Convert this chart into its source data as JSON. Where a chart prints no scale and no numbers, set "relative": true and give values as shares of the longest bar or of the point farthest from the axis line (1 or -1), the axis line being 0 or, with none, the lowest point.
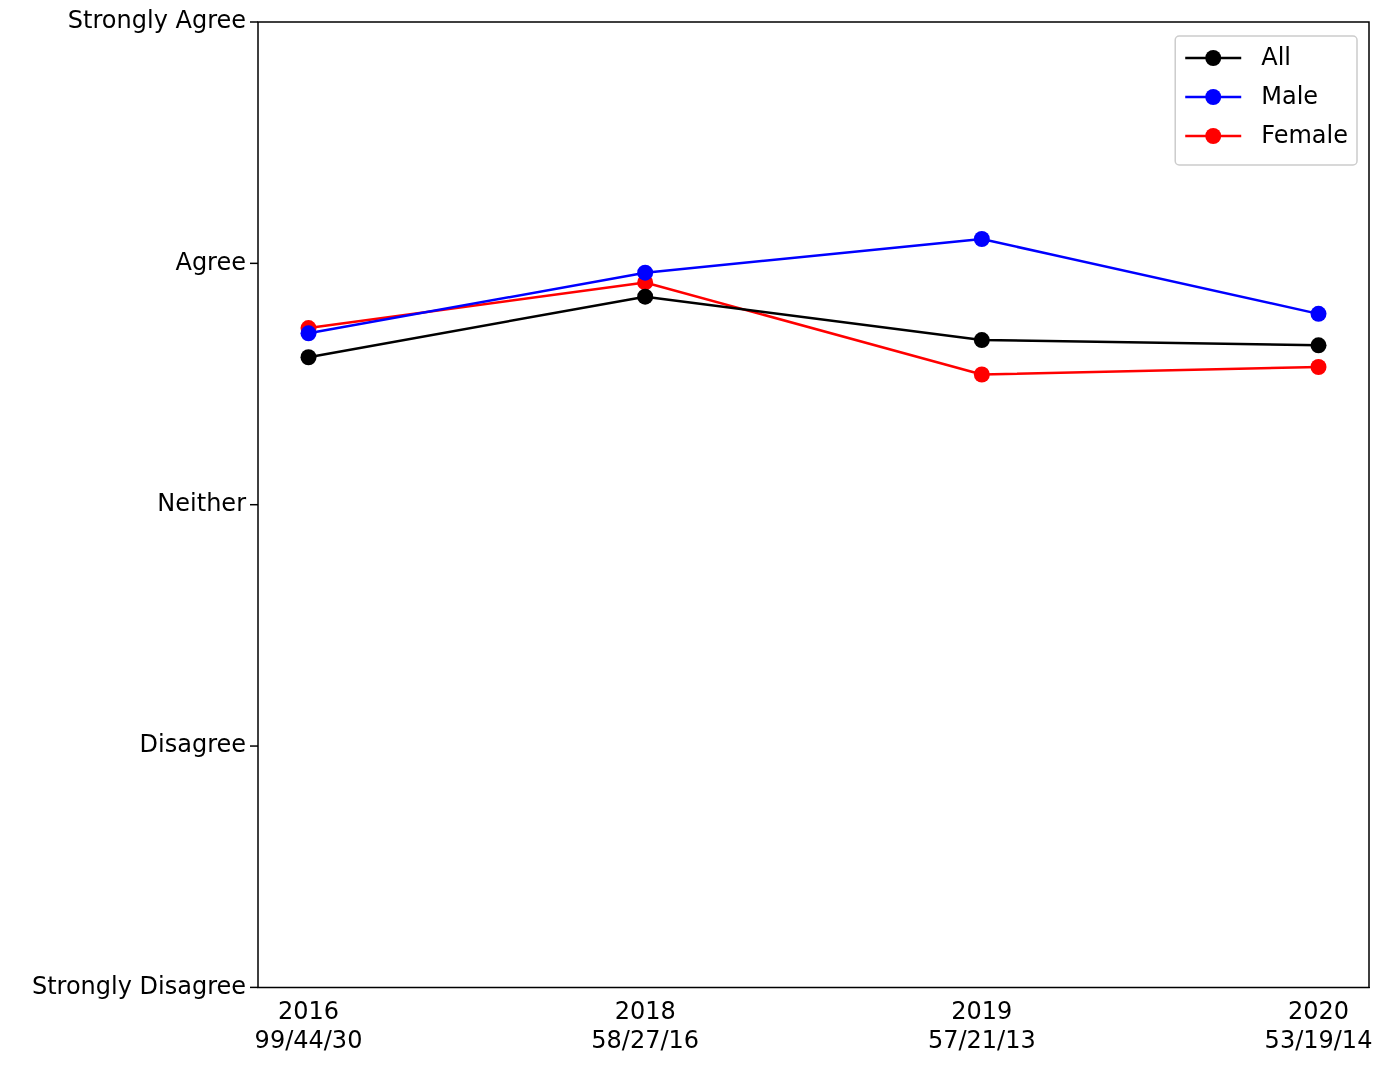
{
  "chart_data": {
    "type": "line",
    "relative": true,
    "categories": [
      "2016\n99/44/30",
      "2018\n58/27/16",
      "2019\n57/21/13",
      "2020\n53/19/14"
    ],
    "series": [
      {
        "name": "All",
        "color": "#000000",
        "values": [
          0.842,
          0.923,
          0.865,
          0.858
        ]
      },
      {
        "name": "Male",
        "color": "#0000ff",
        "values": [
          0.874,
          0.955,
          1,
          0.9
        ]
      },
      {
        "name": "Female",
        "color": "#ff0000",
        "values": [
          0.881,
          0.942,
          0.819,
          0.829
        ]
      }
    ],
    "annotations": [
      "Strongly Disagree",
      "Disagree",
      "Neither",
      "Agree",
      "Strongly Agree"
    ],
    "grid": false,
    "legend": "top right",
    "marker": "circle",
    "line_style": "solid"
  }
}
